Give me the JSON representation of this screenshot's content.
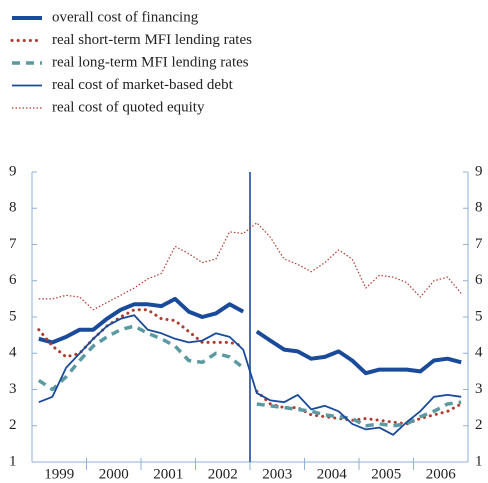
{
  "chart_data": {
    "type": "line",
    "categories": [
      null,
      "1999",
      null,
      null,
      null,
      "2000",
      null,
      null,
      null,
      "2001",
      null,
      null,
      null,
      "2002",
      null,
      null,
      null,
      "2003",
      null,
      null,
      null,
      "2004",
      null,
      null,
      null,
      "2005",
      null,
      null,
      null,
      "2006",
      null,
      null
    ],
    "ylim": [
      1,
      9
    ],
    "yticks": [
      1,
      2,
      3,
      4,
      5,
      6,
      7,
      8,
      9
    ],
    "y2lim": [
      1,
      9
    ],
    "y2ticks": [
      1,
      2,
      3,
      4,
      5,
      6,
      7,
      8,
      9
    ],
    "divider": 16,
    "legend": "top-left",
    "series": [
      {
        "name": "overall cost of financing",
        "color": "#1a4a9a",
        "style": "thick",
        "break": true,
        "values": [
          4.4,
          4.3,
          4.45,
          4.65,
          4.65,
          4.95,
          5.2,
          5.35,
          5.35,
          5.3,
          5.5,
          5.15,
          5.0,
          5.1,
          5.35,
          5.15,
          4.6,
          4.35,
          4.1,
          4.05,
          3.85,
          3.9,
          4.05,
          3.8,
          3.45,
          3.55,
          3.55,
          3.55,
          3.5,
          3.8,
          3.85,
          3.75
        ]
      },
      {
        "name": "real short-term MFI lending rates",
        "color": "#b03a2e",
        "style": "dotted",
        "break": true,
        "values": [
          4.65,
          4.2,
          3.9,
          4.0,
          4.4,
          4.75,
          5.0,
          5.2,
          5.2,
          4.95,
          4.9,
          4.6,
          4.3,
          4.3,
          4.3,
          4.2,
          2.95,
          2.6,
          2.5,
          2.5,
          2.3,
          2.25,
          2.2,
          2.15,
          2.2,
          2.15,
          2.1,
          2.05,
          2.2,
          2.3,
          2.4,
          2.6
        ]
      },
      {
        "name": "real long-term MFI lending rates",
        "color": "#5a9aa0",
        "style": "dashed",
        "break": true,
        "values": [
          3.25,
          3.0,
          3.35,
          3.8,
          4.2,
          4.45,
          4.65,
          4.75,
          4.55,
          4.4,
          4.2,
          3.8,
          3.75,
          4.0,
          3.9,
          3.6,
          2.6,
          2.55,
          2.5,
          2.45,
          2.4,
          2.3,
          2.25,
          2.2,
          2.0,
          2.05,
          2.0,
          2.05,
          2.25,
          2.4,
          2.6,
          2.65
        ]
      },
      {
        "name": "real cost of market-based debt",
        "color": "#1a4a9a",
        "style": "thin",
        "break": false,
        "values": [
          2.65,
          2.8,
          3.6,
          4.0,
          4.4,
          4.75,
          4.95,
          5.05,
          4.65,
          4.55,
          4.4,
          4.3,
          4.35,
          4.55,
          4.45,
          4.1,
          2.9,
          2.7,
          2.65,
          2.85,
          2.45,
          2.55,
          2.4,
          2.05,
          1.9,
          1.95,
          1.75,
          2.1,
          2.4,
          2.8,
          2.85,
          2.8
        ]
      },
      {
        "name": "real cost of quoted equity",
        "color": "#b03a2e",
        "style": "thin-dotted",
        "break": false,
        "values": [
          5.5,
          5.5,
          5.6,
          5.55,
          5.2,
          5.4,
          5.6,
          5.8,
          6.05,
          6.2,
          6.95,
          6.75,
          6.5,
          6.6,
          7.35,
          7.3,
          7.6,
          7.2,
          6.6,
          6.45,
          6.25,
          6.5,
          6.85,
          6.6,
          5.8,
          6.15,
          6.1,
          5.95,
          5.55,
          6.0,
          6.1,
          5.65
        ]
      }
    ]
  }
}
